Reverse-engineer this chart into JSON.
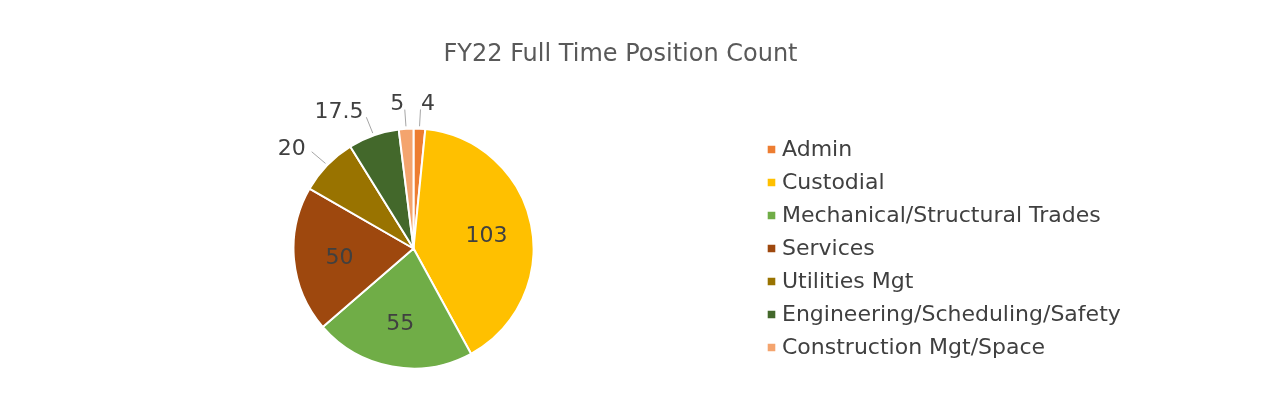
{
  "chart_data": {
    "type": "pie",
    "title": "FY22 Full Time Position Count",
    "categories": [
      "Admin",
      "Custodial",
      "Mechanical/Structural Trades",
      "Services",
      "Utilities Mgt",
      "Engineering/Scheduling/Safety",
      "Construction Mgt/Space"
    ],
    "values": [
      4,
      103,
      55,
      50,
      20,
      17.5,
      5
    ],
    "colors": [
      "#ed7d31",
      "#ffc000",
      "#70ad47",
      "#9e480e",
      "#997300",
      "#43682b",
      "#f4a46e"
    ],
    "data_labels": true,
    "legend": "right"
  }
}
